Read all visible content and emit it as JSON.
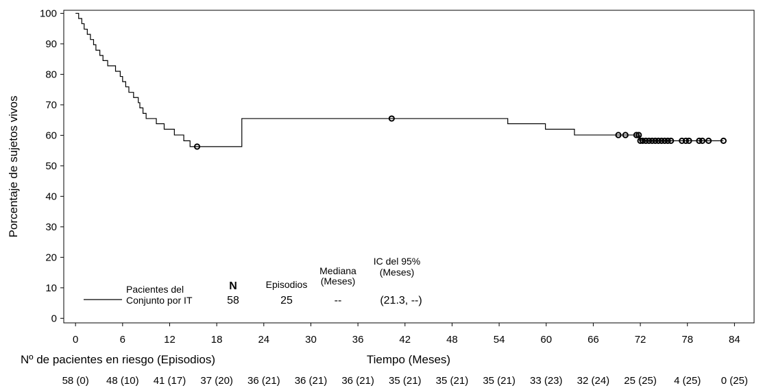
{
  "chart_data": {
    "type": "line",
    "ylabel": "Porcentaje de sujetos vivos",
    "xlabel": "Tiempo (Meses)",
    "xlim": [
      -1.5,
      86.5
    ],
    "ylim": [
      -1.5,
      101
    ],
    "x_ticks": [
      0,
      6,
      12,
      18,
      24,
      30,
      36,
      42,
      48,
      54,
      60,
      66,
      72,
      78,
      84
    ],
    "y_ticks": [
      0,
      10,
      20,
      30,
      40,
      50,
      60,
      70,
      80,
      90,
      100
    ],
    "grid": false,
    "series": [
      {
        "name": "Pacientes del Conjunto por IT",
        "step": true,
        "x": [
          0,
          0.4,
          0.8,
          1.1,
          1.5,
          1.9,
          2.3,
          2.6,
          3.1,
          3.5,
          4.1,
          5.1,
          5.7,
          6.0,
          6.4,
          6.8,
          7.4,
          8.0,
          8.2,
          8.6,
          9.0,
          9.8,
          10.3,
          11.3,
          12.6,
          13.8,
          14.6,
          15.3,
          21.2,
          55.1,
          59.9,
          63.6,
          71.9
        ],
        "y": [
          100,
          98.3,
          96.6,
          94.8,
          93.1,
          91.4,
          89.7,
          87.9,
          86.2,
          84.5,
          82.8,
          81.0,
          79.3,
          77.6,
          75.9,
          74.1,
          72.4,
          70.7,
          69.0,
          67.2,
          65.5,
          65.5,
          63.8,
          62.0,
          60.1,
          58.2,
          56.3,
          56.3,
          65.5,
          63.8,
          62.0,
          60.1,
          58.2
        ],
        "censored_x": [
          15.5,
          40.3,
          69.2,
          70.1,
          71.5,
          71.8,
          72.0,
          72.3,
          72.7,
          73.1,
          73.5,
          73.9,
          74.3,
          74.7,
          75.1,
          75.5,
          75.9,
          77.3,
          77.8,
          78.2,
          79.5,
          79.9,
          80.7,
          82.6
        ]
      }
    ],
    "legend": {
      "label_line1": "Pacientes del",
      "label_line2": "Conjunto por IT",
      "col_n": "N",
      "col_events": "Episodios",
      "col_median_1": "Mediana",
      "col_median_2": "(Meses)",
      "col_ci_1": "IC del 95%",
      "col_ci_2": "(Meses)",
      "val_n": "58",
      "val_events": "25",
      "val_median": "--",
      "val_ci": "(21.3, --)"
    },
    "risk_table": {
      "title": "Nº de pacientes en riesgo (Episodios)",
      "values": [
        "58 (0)",
        "48 (10)",
        "41 (17)",
        "37 (20)",
        "36 (21)",
        "36 (21)",
        "36 (21)",
        "35 (21)",
        "35 (21)",
        "35 (21)",
        "33 (23)",
        "32 (24)",
        "25 (25)",
        "4 (25)",
        "0 (25)"
      ]
    }
  }
}
